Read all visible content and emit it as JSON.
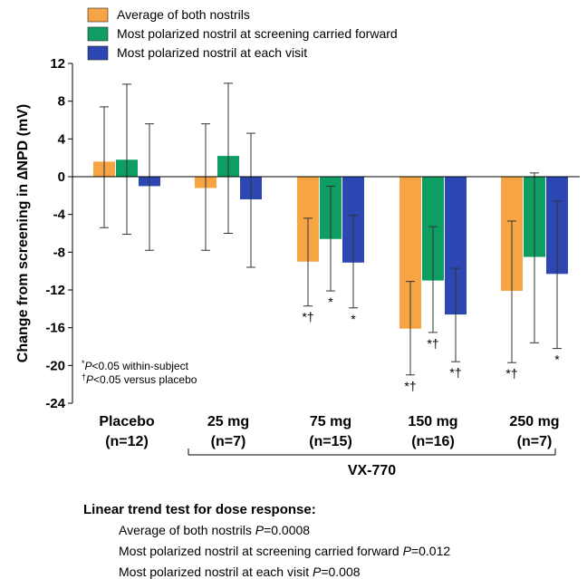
{
  "chart_data": {
    "type": "bar",
    "ylabel": "Change from screening in ∆NPD (mV)",
    "ylim": [
      -24,
      12
    ],
    "yticks": [
      12,
      8,
      4,
      0,
      -4,
      -8,
      -12,
      -16,
      -20,
      -24
    ],
    "yticklabels": [
      "12",
      "8",
      "4",
      "0",
      "-4",
      "-8",
      "-12",
      "-16",
      "-20",
      "-24"
    ],
    "categories": [
      {
        "name": "Placebo",
        "n": "(n=12)"
      },
      {
        "name": "25 mg",
        "n": "(n=7)"
      },
      {
        "name": "75 mg",
        "n": "(n=15)"
      },
      {
        "name": "150 mg",
        "n": "(n=16)"
      },
      {
        "name": "250 mg",
        "n": "(n=7)"
      }
    ],
    "group_bracket_label": "VX-770",
    "legend_position": "top",
    "series": [
      {
        "name": "Average of both nostrils",
        "color": "#F7A445",
        "values": [
          1.6,
          -1.2,
          -9.0,
          -16.1,
          -12.1
        ],
        "error_low": [
          -5.4,
          -7.8,
          -13.7,
          -21.0,
          -19.7
        ],
        "error_high": [
          7.4,
          5.6,
          -4.4,
          -11.1,
          -4.7
        ],
        "significance": [
          "",
          "",
          "*†",
          "*†",
          "*†"
        ]
      },
      {
        "name": "Most polarized nostril at screening carried forward",
        "color": "#0E9E63",
        "values": [
          1.8,
          2.2,
          -6.6,
          -11.0,
          -8.5
        ],
        "error_low": [
          -6.1,
          -6.0,
          -12.1,
          -16.5,
          -17.6
        ],
        "error_high": [
          9.8,
          9.9,
          -1.0,
          -5.3,
          0.4
        ],
        "significance": [
          "",
          "",
          "*",
          "*†",
          ""
        ]
      },
      {
        "name": "Most polarized nostril at each visit",
        "color": "#2D47B2",
        "values": [
          -1.0,
          -2.4,
          -9.1,
          -14.6,
          -10.3
        ],
        "error_low": [
          -7.8,
          -9.6,
          -13.9,
          -19.6,
          -18.2
        ],
        "error_high": [
          5.6,
          4.6,
          -4.1,
          -9.7,
          -2.6
        ],
        "significance": [
          "",
          "",
          "*",
          "*†",
          "*"
        ]
      }
    ],
    "footnotes": [
      {
        "mark": "*",
        "italic": "P",
        "text": "<0.05 within-subject"
      },
      {
        "mark": "†",
        "italic": "P",
        "text": "<0.05 versus placebo"
      }
    ]
  },
  "trend_test": {
    "title": "Linear trend test for dose response:",
    "items": [
      {
        "label": "Average of both nostrils",
        "p_symbol": "P",
        "p_value": "=0.0008"
      },
      {
        "label": "Most polarized nostril at screening carried forward",
        "p_symbol": "P",
        "p_value": "=0.012"
      },
      {
        "label": "Most polarized nostril at each visit",
        "p_symbol": "P",
        "p_value": "=0.008"
      }
    ]
  }
}
